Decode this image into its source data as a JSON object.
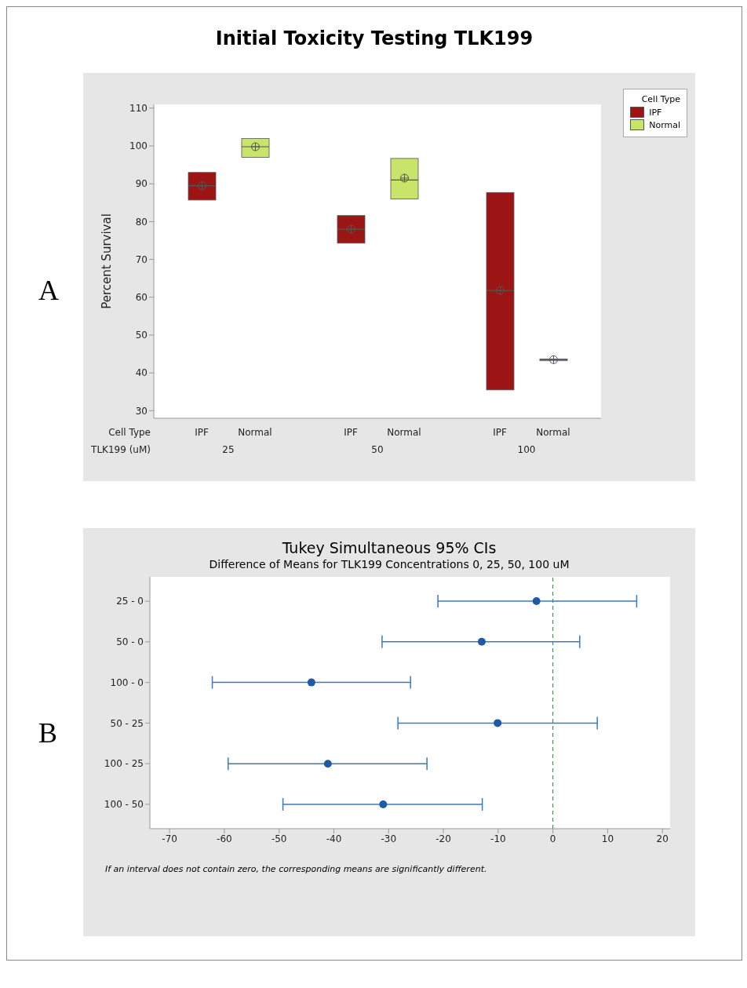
{
  "chart_data": [
    {
      "type": "box",
      "title": "Initial Toxicity Testing TLK199",
      "annotations": [
        "A"
      ],
      "xlabel": "TLK199 (uM)",
      "ylabel": "Percent Survival",
      "legend_title": "Cell Type",
      "legend": "right",
      "categories": [
        "25",
        "50",
        "100"
      ],
      "ylim": [
        28,
        111
      ],
      "yticks": [
        30,
        40,
        50,
        60,
        70,
        80,
        90,
        100,
        110
      ],
      "grid": false,
      "series": [
        {
          "name": "IPF",
          "color": "#9b1515",
          "boxes": [
            {
              "low": 85.7,
              "q1": 85.7,
              "median": 89.5,
              "q3": 93,
              "high": 93,
              "mean": 89.5
            },
            {
              "low": 74.3,
              "q1": 74.3,
              "median": 78,
              "q3": 81.6,
              "high": 81.6,
              "mean": 78
            },
            {
              "low": 35.5,
              "q1": 35.5,
              "median": 61.8,
              "q3": 87.7,
              "high": 87.7,
              "mean": 61.8
            }
          ]
        },
        {
          "name": "Normal",
          "color": "#c8e46a",
          "boxes": [
            {
              "low": 97,
              "q1": 97,
              "median": 99.8,
              "q3": 102,
              "high": 102,
              "mean": 99.8
            },
            {
              "low": 86,
              "q1": 86,
              "median": 91,
              "q3": 96.7,
              "high": 96.7,
              "mean": 91.5
            },
            {
              "low": 43.2,
              "q1": 43.2,
              "median": 43.5,
              "q3": 43.7,
              "high": 43.7,
              "mean": 43.5
            }
          ]
        }
      ]
    },
    {
      "type": "scatter",
      "orientation": "horizontal",
      "title": "Tukey Simultaneous 95% CIs",
      "subtitle": "Difference of Means for TLK199 Concentrations 0, 25, 50, 100 uM",
      "annotations": [
        "B",
        "If an interval does not contain zero, the corresponding means are significantly different."
      ],
      "categories": [
        "25 - 0",
        "50 - 0",
        "100 - 0",
        "50 - 25",
        "100 - 25",
        "100 - 50"
      ],
      "values": [
        -3,
        -13,
        -44.1,
        -10.1,
        -41.1,
        -31
      ],
      "errors": [
        [
          -21,
          15.3
        ],
        [
          -31.2,
          4.9
        ],
        [
          -62.2,
          -26
        ],
        [
          -28.3,
          8.1
        ],
        [
          -59.3,
          -23
        ],
        [
          -49.3,
          -12.9
        ]
      ],
      "color": "#1f5aa6",
      "marker": "circle",
      "xlim": [
        -73.6,
        21.4
      ],
      "xticks": [
        -70,
        -60,
        -50,
        -40,
        -30,
        -20,
        -10,
        0,
        10,
        20
      ],
      "grid": false,
      "ref_lines": [
        {
          "axis": "x",
          "value": 0,
          "color": "#2e7d32",
          "line_style": "dashed"
        }
      ]
    }
  ]
}
